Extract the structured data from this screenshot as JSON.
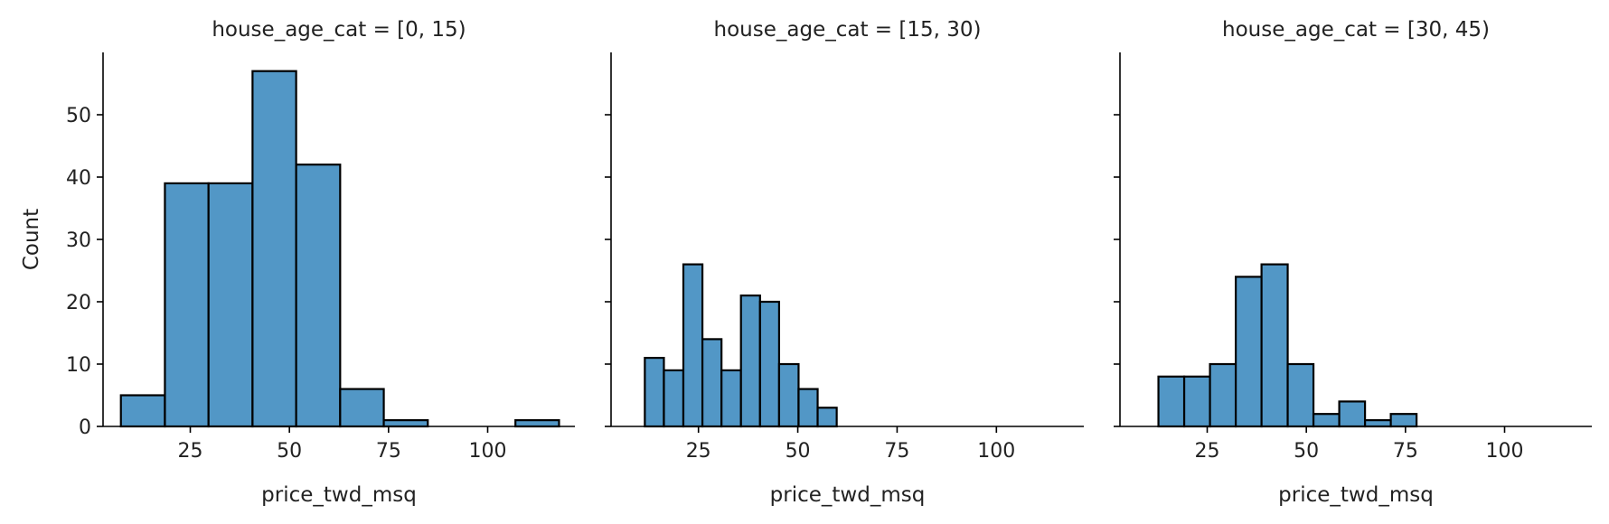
{
  "chart_data": [
    {
      "type": "bar",
      "title": "house_age_cat = [0, 15)",
      "xlabel": "price_twd_msq",
      "ylabel": "Count",
      "xlim": [
        3,
        122
      ],
      "ylim": [
        0,
        60
      ],
      "xticks": [
        25,
        50,
        75,
        100
      ],
      "yticks": [
        0,
        10,
        20,
        30,
        40,
        50
      ],
      "bin_edges": [
        7.5,
        18.6,
        29.6,
        40.7,
        51.7,
        62.8,
        73.8,
        84.9,
        95.9,
        107.0,
        118.0
      ],
      "values": [
        5,
        39,
        39,
        57,
        42,
        6,
        1,
        0,
        0,
        1
      ]
    },
    {
      "type": "bar",
      "title": "house_age_cat = [15, 30)",
      "xlabel": "price_twd_msq",
      "ylabel": "",
      "xlim": [
        3,
        122
      ],
      "ylim": [
        0,
        60
      ],
      "xticks": [
        25,
        50,
        75,
        100
      ],
      "yticks": [
        0,
        10,
        20,
        30,
        40,
        50
      ],
      "bin_edges": [
        11.5,
        16.3,
        21.2,
        26.0,
        30.8,
        35.7,
        40.5,
        45.3,
        50.2,
        55.0,
        59.8
      ],
      "values": [
        11,
        9,
        26,
        14,
        9,
        21,
        20,
        10,
        6,
        3
      ]
    },
    {
      "type": "bar",
      "title": "house_age_cat = [30, 45)",
      "xlabel": "price_twd_msq",
      "ylabel": "",
      "xlim": [
        3,
        122
      ],
      "ylim": [
        0,
        60
      ],
      "xticks": [
        25,
        50,
        75,
        100
      ],
      "yticks": [
        0,
        10,
        20,
        30,
        40,
        50
      ],
      "bin_edges": [
        12.7,
        19.2,
        25.7,
        32.2,
        38.7,
        45.3,
        51.8,
        58.3,
        64.8,
        71.3,
        77.8
      ],
      "values": [
        8,
        8,
        10,
        24,
        26,
        10,
        2,
        4,
        1,
        2
      ]
    }
  ]
}
